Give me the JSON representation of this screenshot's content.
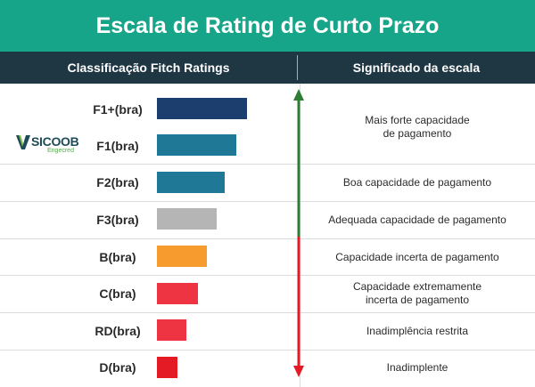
{
  "title": "Escala de Rating de Curto Prazo",
  "header": {
    "col_left": "Classificação Fitch Ratings",
    "col_right": "Significado da escala"
  },
  "logo": {
    "name": "SICOOB",
    "subtitle": "Engecred"
  },
  "ratings": [
    {
      "code": "F1+(bra)",
      "bar_length": 1.0,
      "color": "#1b3e6e"
    },
    {
      "code": "F1(bra)",
      "bar_length": 0.88,
      "color": "#1e7896"
    },
    {
      "code": "F2(bra)",
      "bar_length": 0.75,
      "color": "#1e7896"
    },
    {
      "code": "F3(bra)",
      "bar_length": 0.66,
      "color": "#b5b5b5"
    },
    {
      "code": "B(bra)",
      "bar_length": 0.55,
      "color": "#f79b2e"
    },
    {
      "code": "C(bra)",
      "bar_length": 0.46,
      "color": "#ee3342"
    },
    {
      "code": "RD(bra)",
      "bar_length": 0.33,
      "color": "#ee3342"
    },
    {
      "code": "D(bra)",
      "bar_length": 0.23,
      "color": "#e41b25"
    }
  ],
  "meanings": [
    {
      "line1": "Mais forte capacidade",
      "line2": "de pagamento"
    },
    {
      "line1": "Boa capacidade de pagamento",
      "line2": ""
    },
    {
      "line1": "Adequada capacidade de pagamento",
      "line2": ""
    },
    {
      "line1": "Capacidade incerta de pagamento",
      "line2": ""
    },
    {
      "line1": "Capacidade extremamente",
      "line2": "incerta de pagamento"
    },
    {
      "line1": "Inadimplência restrita",
      "line2": ""
    },
    {
      "line1": "Inadimplente",
      "line2": ""
    }
  ],
  "colors": {
    "banner": "#17a589",
    "header": "#1f3643",
    "arrow_up": "#2e7d32",
    "arrow_down": "#e41b25"
  }
}
